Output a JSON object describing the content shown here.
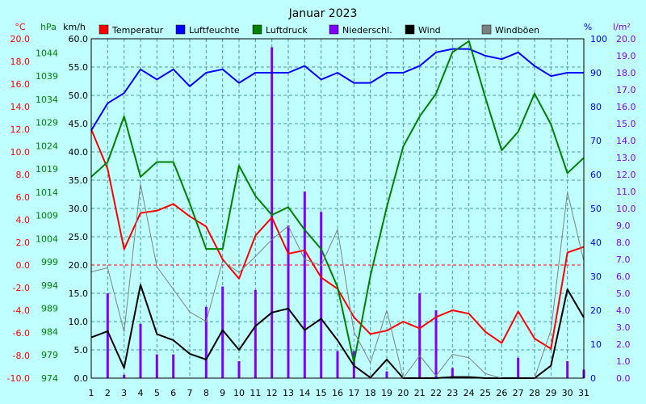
{
  "chart_data": {
    "type": "line",
    "title": "Januar 2023",
    "x": [
      1,
      2,
      3,
      4,
      5,
      6,
      7,
      8,
      9,
      10,
      11,
      12,
      13,
      14,
      15,
      16,
      17,
      18,
      19,
      20,
      21,
      22,
      23,
      24,
      25,
      26,
      27,
      28,
      29,
      30,
      31
    ],
    "axes": {
      "temp": {
        "unit": "°C",
        "range": [
          -10,
          20
        ],
        "ticks": [
          "20.0",
          "18.0",
          "16.0",
          "14.0",
          "12.0",
          "10.0",
          "8.0",
          "6.0",
          "4.0",
          "2.0",
          "0.0",
          "-2.0",
          "-4.0",
          "-6.0",
          "-8.0",
          "-10.0"
        ]
      },
      "pressure": {
        "unit": "hPa",
        "range": [
          974,
          1047
        ],
        "ticks": [
          "1044",
          "1039",
          "1034",
          "1029",
          "1024",
          "1019",
          "1014",
          "1009",
          "1004",
          "999",
          "994",
          "989",
          "984",
          "979",
          "974"
        ]
      },
      "wind": {
        "unit": "km/h",
        "range": [
          0,
          60
        ],
        "ticks": [
          "60.0",
          "55.0",
          "50.0",
          "45.0",
          "40.0",
          "35.0",
          "30.0",
          "25.0",
          "20.0",
          "15.0",
          "10.0",
          "5.0",
          "0.0"
        ]
      },
      "humidity": {
        "unit": "%",
        "range": [
          0,
          100
        ],
        "ticks": [
          "100",
          "90",
          "80",
          "70",
          "60",
          "50",
          "40",
          "30",
          "20",
          "10",
          "0"
        ]
      },
      "precip": {
        "unit": "l/m²",
        "range": [
          0,
          20
        ],
        "ticks": [
          "20.0",
          "19.0",
          "18.0",
          "17.0",
          "16.0",
          "15.0",
          "14.0",
          "13.0",
          "12.0",
          "11.0",
          "10.0",
          "9.0",
          "8.0",
          "7.0",
          "6.0",
          "5.0",
          "4.0",
          "3.0",
          "2.0",
          "1.0",
          "0.0"
        ]
      }
    },
    "series": [
      {
        "name": "Temperatur",
        "axis": "temp",
        "color": "#ff0000",
        "kind": "line",
        "width": 2,
        "values": [
          12.0,
          8.5,
          1.4,
          4.6,
          4.8,
          5.4,
          4.3,
          3.4,
          0.5,
          -1.2,
          2.6,
          4.2,
          1.0,
          1.3,
          -1.1,
          -2.1,
          -4.6,
          -6.1,
          -5.8,
          -5.0,
          -5.6,
          -4.6,
          -4.0,
          -4.3,
          -5.9,
          -6.9,
          -4.1,
          -6.5,
          -7.4,
          1.1,
          1.6
        ]
      },
      {
        "name": "Luftfeuchte",
        "axis": "humidity",
        "color": "#0000ff",
        "kind": "line",
        "width": 2,
        "values": [
          73,
          81,
          84,
          91,
          88,
          91,
          86,
          90,
          91,
          87,
          90,
          90,
          90,
          92,
          88,
          90,
          87,
          87,
          90,
          90,
          92,
          96,
          97,
          97,
          95,
          94,
          96,
          92,
          89,
          90,
          90
        ]
      },
      {
        "name": "Luftdruck",
        "axis": "pressure",
        "color": "#008000",
        "kind": "line",
        "width": 2,
        "values": [
          1017.3,
          1020.5,
          1030.3,
          1017.3,
          1020.5,
          1020.5,
          1011.6,
          1001.8,
          1001.8,
          1019.7,
          1013.2,
          1009.1,
          1010.8,
          1005.9,
          1001.8,
          993.6,
          977.4,
          996.0,
          1010.8,
          1023.8,
          1030.3,
          1035.2,
          1044.1,
          1046.5,
          1034.4,
          1023.0,
          1027.0,
          1035.2,
          1028.6,
          1018.1,
          1021.4
        ]
      },
      {
        "name": "Niederschl.",
        "axis": "precip",
        "color": "#8000ff",
        "kind": "bar",
        "width": 3,
        "values": [
          0,
          5.0,
          0.2,
          3.2,
          1.4,
          1.4,
          0,
          4.2,
          5.4,
          1.0,
          5.2,
          19.5,
          9.0,
          11.0,
          9.8,
          1.6,
          1.6,
          0,
          0.4,
          0,
          5.0,
          4.0,
          0.6,
          0,
          0,
          0,
          1.2,
          0,
          0,
          1.0,
          0.5
        ]
      },
      {
        "name": "Wind",
        "axis": "wind",
        "color": "#000000",
        "kind": "line",
        "width": 2,
        "values": [
          7.2,
          8.3,
          1.8,
          16.5,
          7.8,
          6.7,
          4.3,
          3.3,
          8.5,
          5.0,
          9.2,
          11.6,
          12.3,
          8.5,
          10.5,
          6.7,
          2.2,
          0.1,
          3.3,
          0,
          0,
          0,
          0.2,
          0.2,
          0,
          0,
          0,
          0,
          2.2,
          15.7,
          10.7
        ]
      },
      {
        "name": "Windböen",
        "axis": "wind",
        "color": "#808080",
        "kind": "line",
        "width": 1,
        "values": [
          18.8,
          19.5,
          8.2,
          34.3,
          19.7,
          15.7,
          11.7,
          10.0,
          20.7,
          18.7,
          21.5,
          24.5,
          26.9,
          21.0,
          19.9,
          26.3,
          8.2,
          2.7,
          12.0,
          0,
          4.0,
          0.4,
          4.2,
          3.6,
          0.8,
          0,
          0,
          0,
          8.5,
          32.9,
          20.7
        ]
      }
    ],
    "legend_position": "top",
    "grid": true,
    "zero_line_axis": "temp",
    "zero_line_value": 0
  }
}
